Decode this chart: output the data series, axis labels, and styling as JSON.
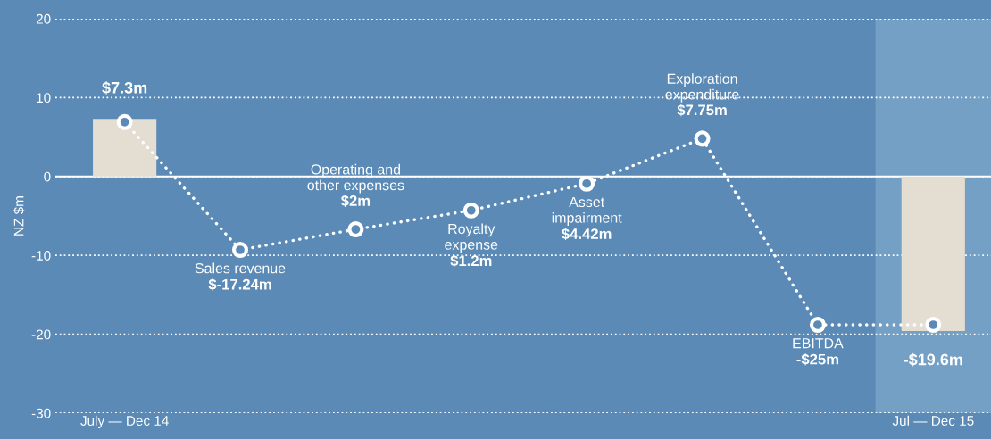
{
  "chart_data": {
    "type": "bar",
    "ylabel": "NZ $m",
    "categories": [
      "July — Dec 14",
      null,
      null,
      null,
      null,
      null,
      null,
      "Jul — Dec 15"
    ],
    "series": [
      {
        "color": "#e3ddd2",
        "values": [
          7.3,
          null,
          null,
          null,
          null,
          null,
          null,
          -19.6
        ],
        "value_labels": [
          "$7.3m",
          null,
          null,
          null,
          null,
          null,
          null,
          "-$19.6m"
        ]
      },
      {
        "type": "line",
        "color": "#ffffff",
        "values": [
          6.9,
          -9.3,
          -6.7,
          -4.3,
          -0.9,
          4.8,
          -18.8,
          -18.8
        ]
      }
    ],
    "annotations": [
      "Sales revenue\n$-17.24m",
      "Operating and\nother expenses\n$2m",
      "Royalty\nexpense\n$1.2m",
      "Asset\nimpairment\n$4.42m",
      "Exploration\nexpenditure\n$7.75m",
      "EBITDA\n-$25m"
    ],
    "ylim": [
      -30,
      20
    ],
    "yticks": [
      -30,
      -20,
      -10,
      0,
      10,
      20
    ],
    "grid": "y",
    "marker": "circle",
    "line_style": "dotted",
    "legend": false,
    "ref_lines": [
      {
        "axis": "y",
        "value": 0,
        "color": "#ffffff"
      }
    ]
  }
}
